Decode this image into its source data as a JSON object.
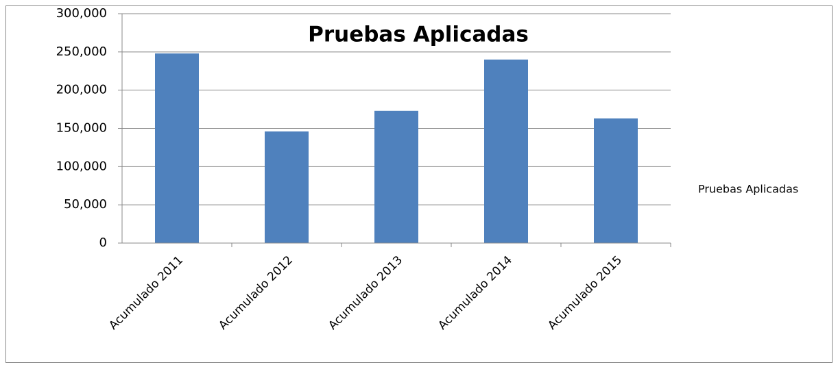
{
  "chart_data": {
    "type": "bar",
    "title": "Pruebas Aplicadas",
    "categories": [
      "Acumulado 2011",
      "Acumulado 2012",
      "Acumulado 2013",
      "Acumulado 2014",
      "Acumulado 2015"
    ],
    "series": [
      {
        "name": "Pruebas Aplicadas",
        "color": "#4f81bd",
        "values": [
          248000,
          146000,
          173000,
          240000,
          163000
        ]
      }
    ],
    "ylim": [
      0,
      300000
    ],
    "yticks": [
      0,
      {
        "value": 50000,
        "label": "50,000"
      },
      {
        "value": 100000,
        "label": "100,000"
      },
      {
        "value": 150000,
        "label": "150,000"
      },
      {
        "value": 200000,
        "label": "200,000"
      },
      {
        "value": 250000,
        "label": "250,000"
      },
      {
        "value": 300000,
        "label": "300,000"
      }
    ],
    "grid": true,
    "legend": "right"
  }
}
